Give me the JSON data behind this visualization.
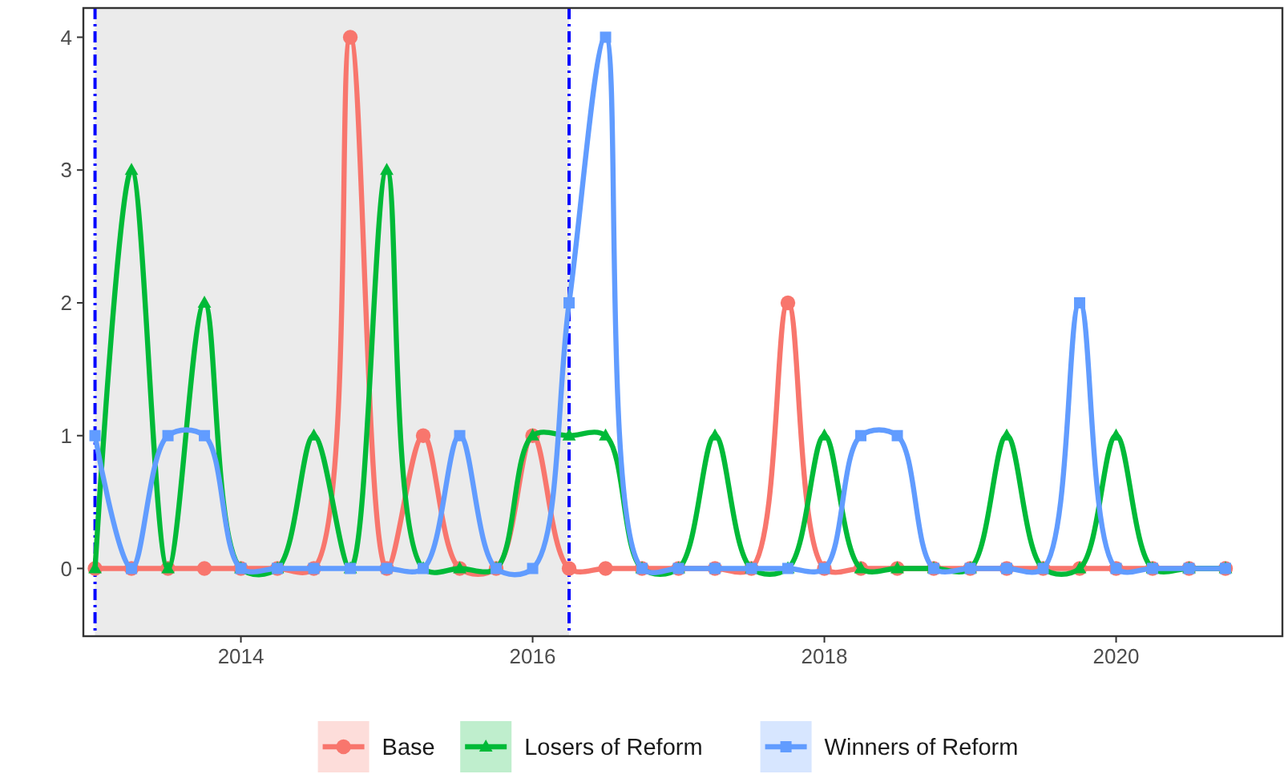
{
  "chart_data": {
    "type": "line",
    "x": [
      2013,
      2013.25,
      2013.5,
      2013.75,
      2014,
      2014.25,
      2014.5,
      2014.75,
      2015,
      2015.25,
      2015.5,
      2015.75,
      2016,
      2016.25,
      2016.5,
      2016.75,
      2017,
      2017.25,
      2017.5,
      2017.75,
      2018,
      2018.25,
      2018.5,
      2018.75,
      2019,
      2019.25,
      2019.5,
      2019.75,
      2020,
      2020.25,
      2020.5,
      2020.75
    ],
    "series": [
      {
        "name": "Base",
        "color": "#f8766d",
        "marker": "circle",
        "values": [
          0,
          0,
          0,
          0,
          0,
          0,
          0,
          4,
          0,
          1,
          0,
          0,
          1,
          0,
          0,
          0,
          0,
          0,
          0,
          2,
          0,
          0,
          0,
          0,
          0,
          0,
          0,
          0,
          0,
          0,
          0,
          0
        ]
      },
      {
        "name": "Losers of Reform",
        "color": "#00ba38",
        "marker": "triangle",
        "values": [
          0,
          3,
          0,
          2,
          0,
          0,
          1,
          0,
          3,
          0,
          0,
          0,
          1,
          1,
          1,
          0,
          0,
          1,
          0,
          0,
          1,
          0,
          0,
          0,
          0,
          1,
          0,
          0,
          1,
          0,
          0,
          0
        ]
      },
      {
        "name": "Winners of Reform",
        "color": "#619cff",
        "marker": "square",
        "values": [
          1,
          0,
          1,
          1,
          0,
          0,
          0,
          0,
          0,
          0,
          1,
          0,
          0,
          2,
          4,
          0,
          0,
          0,
          0,
          0,
          0,
          1,
          1,
          0,
          0,
          0,
          0,
          2,
          0,
          0,
          0,
          0
        ]
      }
    ],
    "xlim": [
      2012.92,
      2021.14
    ],
    "xticks": [
      2014,
      2016,
      2018,
      2020
    ],
    "ylim": [
      -0.51,
      4.22
    ],
    "yticks": [
      0,
      1,
      2,
      3,
      4
    ],
    "bands": [
      {
        "axis": "x",
        "from": 2013,
        "to": 2016.25,
        "color": "#ebebeb"
      }
    ],
    "ref_lines": [
      {
        "axis": "x",
        "value": 2013,
        "color": "#0000ff",
        "line_style": "dashed"
      },
      {
        "axis": "x",
        "value": 2016.25,
        "color": "#0000ff",
        "line_style": "dashed"
      }
    ],
    "grid": false,
    "legend": "bottom",
    "line_style": "solid"
  }
}
